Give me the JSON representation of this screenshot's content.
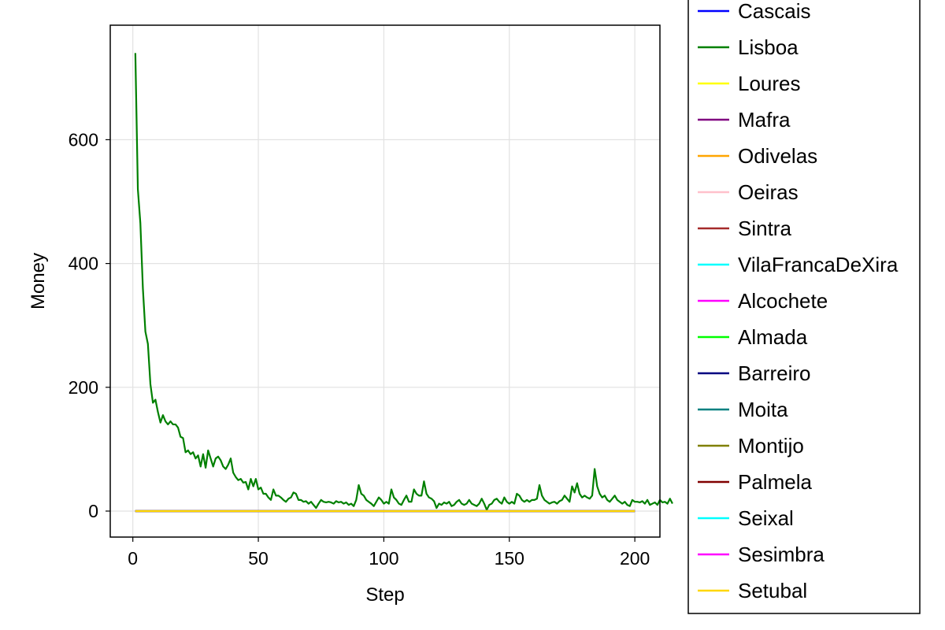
{
  "chart_data": {
    "type": "line",
    "title": "",
    "xlabel": "Step",
    "ylabel": "Money",
    "xlim": [
      -9,
      210
    ],
    "ylim": [
      -42,
      785
    ],
    "xticks": [
      0,
      50,
      100,
      150,
      200
    ],
    "yticks": [
      0,
      200,
      400,
      600
    ],
    "xtick_labels": [
      "0",
      "50",
      "100",
      "150",
      "200"
    ],
    "ytick_labels": [
      "0",
      "200",
      "400",
      "600"
    ],
    "grid": true,
    "legend_position": "right",
    "series": [
      {
        "name": "Cascais",
        "color": "#0000ff",
        "constant": 0
      },
      {
        "name": "Lisboa",
        "color": "#008000",
        "x_start": 1,
        "values": [
          740,
          520,
          465,
          360,
          290,
          270,
          205,
          175,
          180,
          160,
          143,
          155,
          145,
          140,
          145,
          140,
          140,
          135,
          120,
          118,
          95,
          98,
          92,
          95,
          85,
          90,
          72,
          92,
          70,
          98,
          85,
          72,
          85,
          88,
          82,
          72,
          68,
          75,
          85,
          62,
          55,
          50,
          52,
          46,
          47,
          35,
          52,
          40,
          52,
          35,
          38,
          28,
          28,
          22,
          18,
          35,
          25,
          25,
          22,
          18,
          15,
          20,
          22,
          30,
          28,
          18,
          18,
          15,
          16,
          12,
          15,
          10,
          5,
          12,
          18,
          15,
          14,
          15,
          14,
          12,
          16,
          14,
          15,
          12,
          14,
          10,
          12,
          8,
          18,
          42,
          28,
          25,
          18,
          15,
          12,
          8,
          15,
          22,
          18,
          12,
          15,
          12,
          35,
          22,
          18,
          12,
          10,
          18,
          25,
          15,
          15,
          35,
          28,
          25,
          25,
          48,
          28,
          22,
          20,
          16,
          5,
          12,
          10,
          14,
          12,
          15,
          8,
          10,
          15,
          18,
          12,
          10,
          12,
          18,
          12,
          10,
          8,
          12,
          20,
          12,
          2,
          10,
          12,
          18,
          20,
          15,
          12,
          22,
          15,
          12,
          15,
          12,
          28,
          25,
          18,
          15,
          18,
          15,
          18,
          18,
          20,
          42,
          25,
          18,
          15,
          12,
          14,
          15,
          12,
          16,
          18,
          25,
          20,
          15,
          40,
          30,
          45,
          28,
          22,
          25,
          22,
          20,
          25,
          68,
          40,
          28,
          22,
          25,
          18,
          15,
          20,
          25,
          18,
          15,
          12,
          15,
          10,
          8,
          18,
          15,
          15,
          14,
          16,
          12,
          18,
          10,
          12,
          14,
          10,
          18,
          14,
          15,
          12,
          20,
          12
        ]
      },
      {
        "name": "Loures",
        "color": "#ffff00",
        "constant": 0
      },
      {
        "name": "Mafra",
        "color": "#800080",
        "constant": 0
      },
      {
        "name": "Odivelas",
        "color": "#ffa500",
        "constant": 0
      },
      {
        "name": "Oeiras",
        "color": "#ffc0cb",
        "constant": 0
      },
      {
        "name": "Sintra",
        "color": "#a52a2a",
        "constant": 0
      },
      {
        "name": "VilaFrancaDeXira",
        "color": "#00ffff",
        "constant": 0
      },
      {
        "name": "Alcochete",
        "color": "#ff00ff",
        "constant": 0
      },
      {
        "name": "Almada",
        "color": "#00ff00",
        "constant": 0
      },
      {
        "name": "Barreiro",
        "color": "#000080",
        "constant": 0
      },
      {
        "name": "Moita",
        "color": "#008080",
        "constant": 0
      },
      {
        "name": "Montijo",
        "color": "#808000",
        "constant": 0
      },
      {
        "name": "Palmela",
        "color": "#800000",
        "constant": 0
      },
      {
        "name": "Seixal",
        "color": "#00ffff",
        "constant": 0
      },
      {
        "name": "Sesimbra",
        "color": "#ff00ff",
        "constant": 0
      },
      {
        "name": "Setubal",
        "color": "#ffd700",
        "constant": 0
      }
    ]
  }
}
